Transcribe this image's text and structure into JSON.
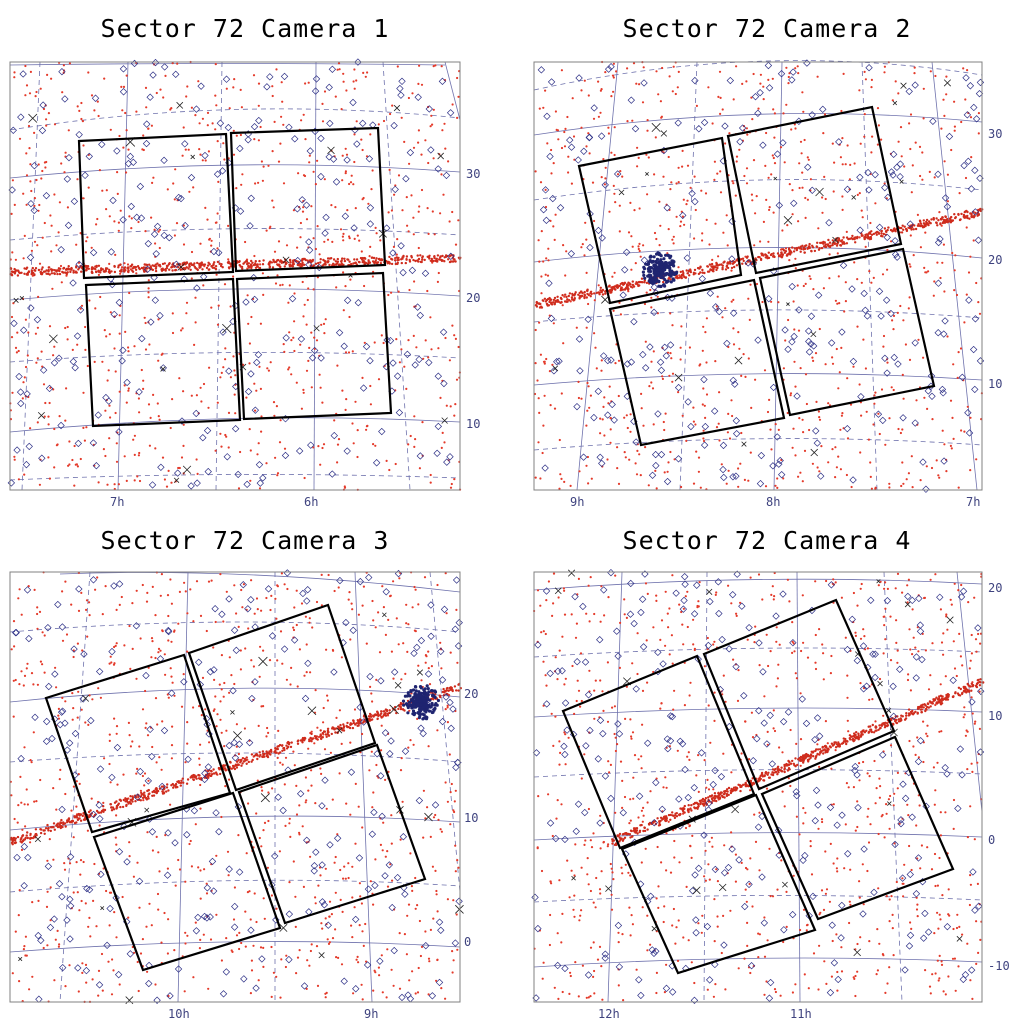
{
  "chart_data": [
    {
      "type": "scatter",
      "title": "Sector 72 Camera 1",
      "ra_labels": [
        "7h",
        "6h"
      ],
      "dec_labels": [
        "30",
        "20",
        "10"
      ],
      "dense_cluster": false
    },
    {
      "type": "scatter",
      "title": "Sector 72 Camera 2",
      "ra_labels": [
        "9h",
        "8h",
        "7h"
      ],
      "dec_labels": [
        "30",
        "20",
        "10"
      ],
      "dense_cluster": true
    },
    {
      "type": "scatter",
      "title": "Sector 72 Camera 3",
      "ra_labels": [
        "10h",
        "9h"
      ],
      "dec_labels": [
        "20",
        "10",
        "0"
      ],
      "dense_cluster": true
    },
    {
      "type": "scatter",
      "title": "Sector 72 Camera 4",
      "ra_labels": [
        "12h",
        "11h"
      ],
      "dec_labels": [
        "20",
        "10",
        "0",
        "-10"
      ],
      "dense_cluster": false
    }
  ],
  "colors": {
    "frame": "#808080",
    "grid": "#6f72ad",
    "ccd_outline": "#000000",
    "red_points": "#e43a2a",
    "diamonds": "#2e3187",
    "labels": "#3f437f"
  },
  "markers": {
    "point_symbol": "red-dot",
    "bright_symbol": "diamond",
    "other_symbol": "x-mark"
  }
}
